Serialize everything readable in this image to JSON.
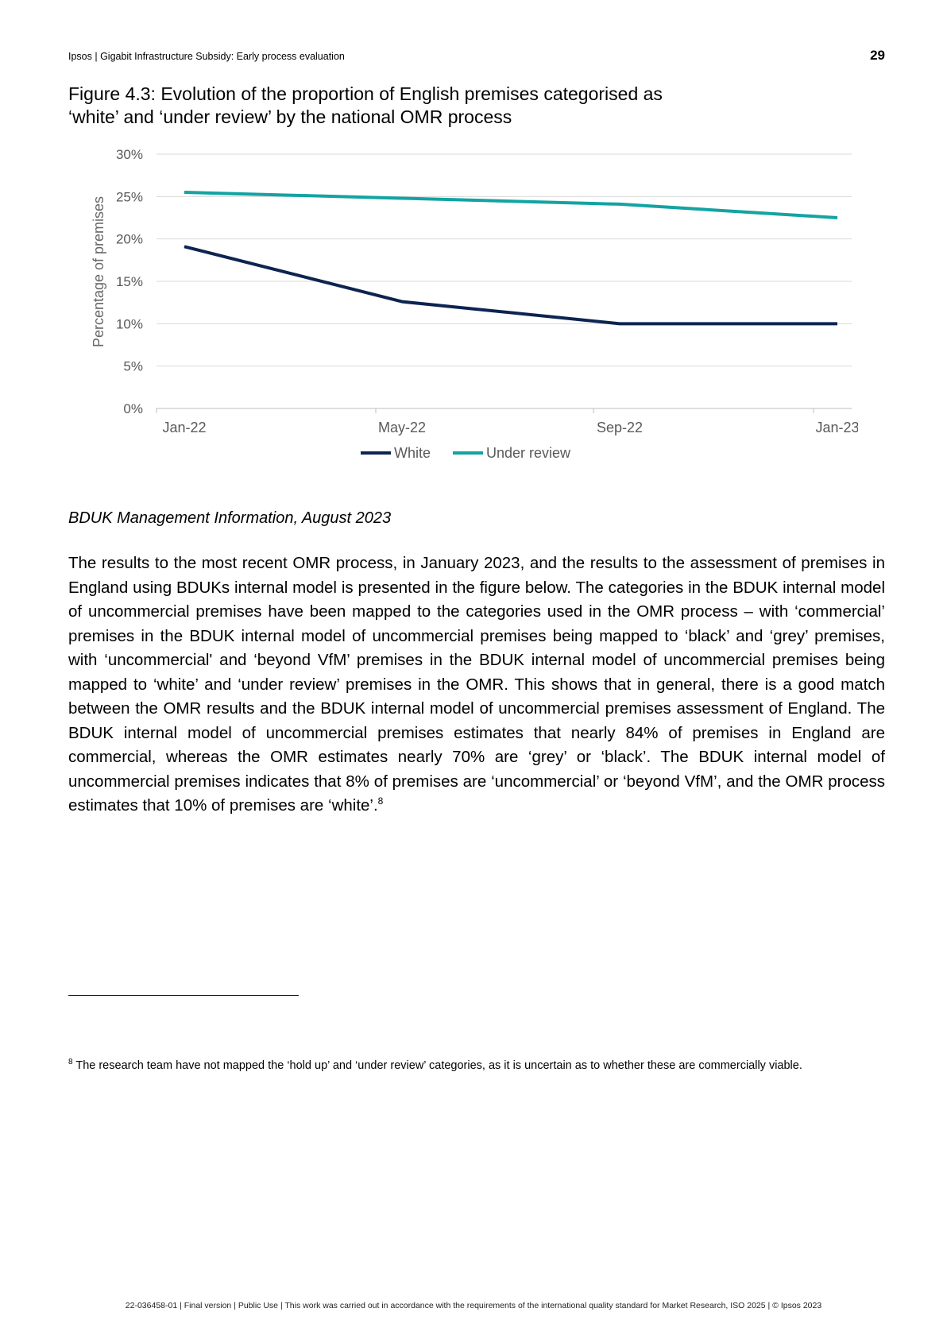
{
  "header": {
    "left": "Ipsos | Gigabit Infrastructure Subsidy: Early process evaluation",
    "page_number": "29"
  },
  "figure": {
    "title_line1": "Figure 4.3: Evolution of the proportion of English premises categorised as",
    "title_line2": "‘white’ and ‘under review’ by the national OMR process"
  },
  "chart_data": {
    "type": "line",
    "title": "",
    "xlabel": "",
    "ylabel": "Percentage of premises",
    "categories": [
      "Jan-22",
      "May-22",
      "Sep-22",
      "Jan-23"
    ],
    "y_ticks": [
      "0%",
      "5%",
      "10%",
      "15%",
      "20%",
      "25%",
      "30%"
    ],
    "ylim": [
      0,
      30
    ],
    "grid": true,
    "legend_position": "bottom",
    "series": [
      {
        "name": "White",
        "color": "#0d2451",
        "values": [
          19.1,
          12.6,
          10.0,
          10.0
        ]
      },
      {
        "name": "Under review",
        "color": "#13a3a2",
        "values": [
          25.5,
          24.8,
          24.1,
          22.5
        ]
      }
    ]
  },
  "source": "BDUK Management Information, August 2023",
  "body": {
    "paragraph": "The results to the most recent OMR process, in January 2023, and the results to the assessment of premises in England using BDUKs internal model is presented in the figure below. The categories in the BDUK internal model of uncommercial premises have been mapped to the categories used in the OMR process – with ‘commercial’ premises in the BDUK internal model of uncommercial premises being mapped to ‘black’ and ‘grey’ premises, with ‘uncommercial' and ‘beyond VfM’ premises in the BDUK internal model of uncommercial premises being mapped to ‘white’ and ‘under review’ premises in the OMR. This shows that in general, there is a good match between the OMR results and the BDUK internal model of uncommercial premises assessment of England. The BDUK internal model of uncommercial premises estimates that nearly 84% of premises in England are commercial, whereas the OMR estimates nearly 70% are ‘grey’ or ‘black’. The BDUK internal model of uncommercial premises indicates that 8% of premises are ‘uncommercial’ or ‘beyond VfM’, and the OMR process estimates that 10% of premises are ‘white’.",
    "footnote_ref": "8"
  },
  "footnote": {
    "number": "8",
    "text": "The research team have not mapped the ‘hold up’ and ‘under review’ categories, as it is uncertain as to whether these are commercially viable."
  },
  "footer": {
    "text": "22-036458-01 | Final version | Public Use | This work was carried out in accordance with the requirements of the international quality standard for Market Research, ISO 2025 | © Ipsos 2023"
  }
}
